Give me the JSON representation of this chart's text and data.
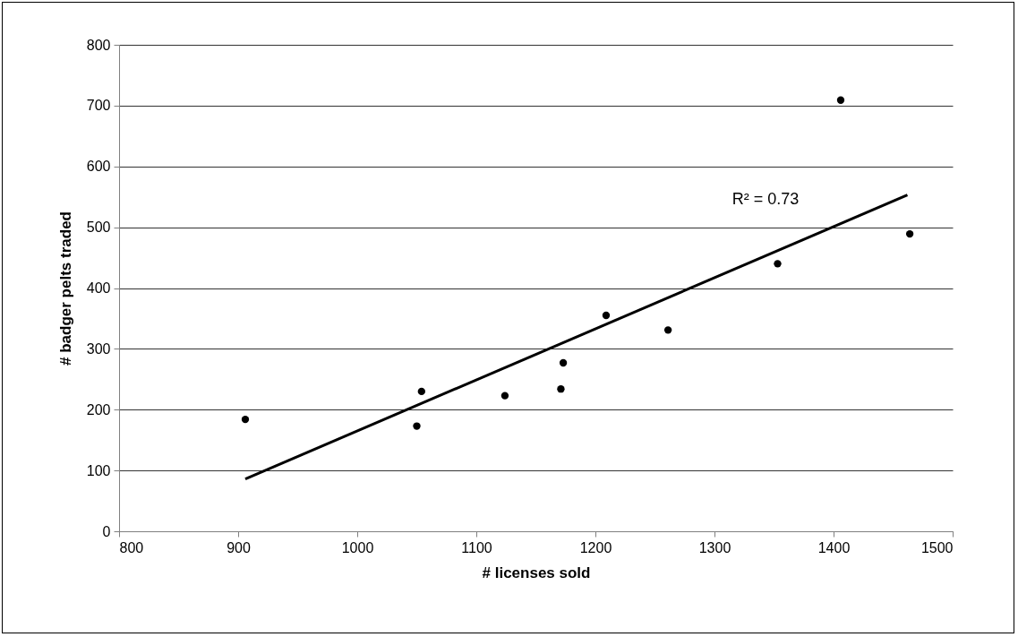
{
  "chart_data": {
    "type": "scatter",
    "xlabel": "# licenses sold",
    "ylabel": "# badger pelts traded",
    "xlim": [
      800,
      1500
    ],
    "xticks": [
      800,
      900,
      1000,
      1100,
      1200,
      1300,
      1400,
      1500
    ],
    "ylim": [
      0,
      800
    ],
    "yticks": [
      0,
      100,
      200,
      300,
      400,
      500,
      600,
      700,
      800
    ],
    "grid": "y",
    "series": [
      {
        "color": "#000000",
        "marker": "circle",
        "x": [
          906,
          1050,
          1054,
          1124,
          1171,
          1173,
          1209,
          1261,
          1353,
          1406,
          1464
        ],
        "values": [
          184,
          173,
          230,
          223,
          234,
          277,
          355,
          331,
          440,
          709,
          489
        ]
      },
      {
        "type": "line",
        "color": "#000000",
        "x": [
          906,
          1462
        ],
        "values": [
          86,
          553
        ]
      }
    ],
    "annotations": [
      "R² = 0.73"
    ]
  }
}
